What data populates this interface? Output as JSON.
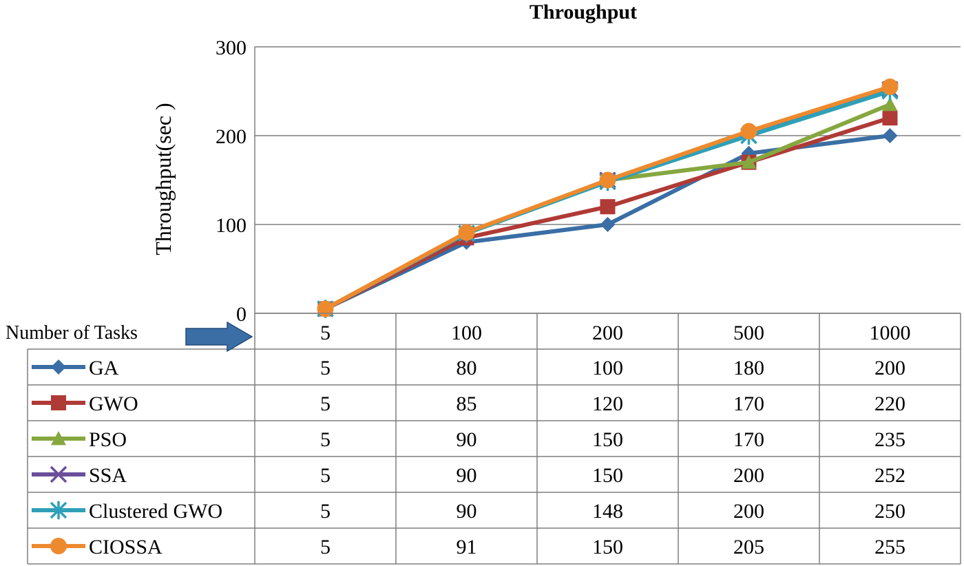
{
  "chart_data": {
    "type": "line",
    "title": "Throughput",
    "xlabel": "Number of Tasks",
    "ylabel": "Throughput(sec )",
    "ylim": [
      0,
      300
    ],
    "yticks": [
      0,
      100,
      200,
      300
    ],
    "grid": true,
    "legend_placement": "data-table-left",
    "categories": [
      "5",
      "100",
      "200",
      "500",
      "1000"
    ],
    "series": [
      {
        "name": "GA",
        "values": [
          5,
          80,
          100,
          180,
          200
        ],
        "color": "#3A6EA5",
        "marker": "diamond"
      },
      {
        "name": "GWO",
        "values": [
          5,
          85,
          120,
          170,
          220
        ],
        "color": "#B03A36",
        "marker": "square"
      },
      {
        "name": "PSO",
        "values": [
          5,
          90,
          150,
          170,
          235
        ],
        "color": "#86A73F",
        "marker": "triangle"
      },
      {
        "name": "SSA",
        "values": [
          5,
          90,
          150,
          200,
          252
        ],
        "color": "#6A4F9A",
        "marker": "x"
      },
      {
        "name": "Clustered GWO",
        "values": [
          5,
          90,
          148,
          200,
          250
        ],
        "color": "#2FA0B8",
        "marker": "star"
      },
      {
        "name": "CIOSSA",
        "values": [
          5,
          91,
          150,
          205,
          255
        ],
        "color": "#EE8A2E",
        "marker": "circle"
      }
    ],
    "table_values": [
      [
        "5",
        "80",
        "100",
        "180",
        "200"
      ],
      [
        "5",
        "85",
        "120",
        "170",
        "220"
      ],
      [
        "5",
        "90",
        "150",
        "170",
        "235"
      ],
      [
        "5",
        "90",
        "150",
        "200",
        "252"
      ],
      [
        "5",
        "90",
        "148",
        "200",
        "250"
      ],
      [
        "5",
        "91",
        "150",
        "205",
        "255"
      ]
    ]
  }
}
